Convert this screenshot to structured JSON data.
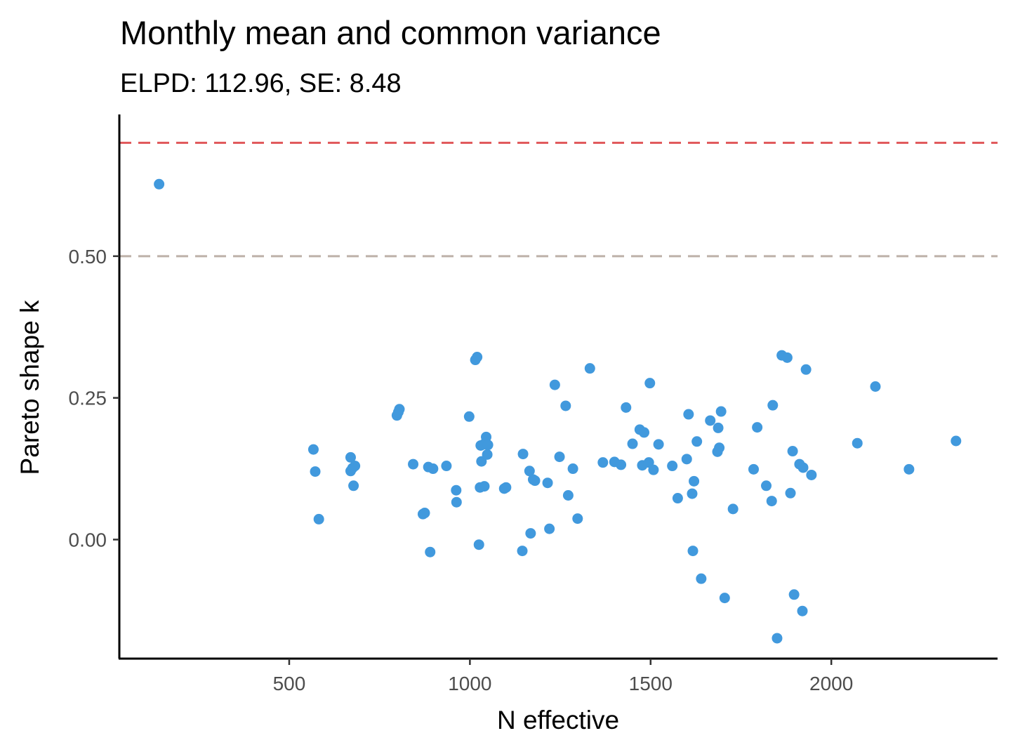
{
  "chart_data": {
    "type": "scatter",
    "title": "Monthly mean and common variance",
    "subtitle": "ELPD: 112.96, SE: 8.48",
    "xlabel": "N effective",
    "ylabel": "Pareto shape k",
    "xlim": [
      30,
      2460
    ],
    "ylim": [
      -0.21,
      0.75
    ],
    "x_ticks": [
      500,
      1000,
      1500,
      2000
    ],
    "x_tick_labels": [
      "500",
      "1000",
      "1500",
      "2000"
    ],
    "y_ticks": [
      0.0,
      0.25,
      0.5
    ],
    "y_tick_labels": [
      "0.00",
      "0.25",
      "0.50"
    ],
    "grid": false,
    "point_color": "#4199dd",
    "reference_lines": [
      {
        "y": 0.7,
        "color": "#e0575a",
        "style": "dashed"
      },
      {
        "y": 0.5,
        "color": "#bdb1a9",
        "style": "dashed"
      }
    ],
    "points": [
      {
        "x": 140,
        "y": 0.627
      },
      {
        "x": 567,
        "y": 0.159
      },
      {
        "x": 572,
        "y": 0.12
      },
      {
        "x": 582,
        "y": 0.036
      },
      {
        "x": 670,
        "y": 0.145
      },
      {
        "x": 670,
        "y": 0.121
      },
      {
        "x": 675,
        "y": 0.126
      },
      {
        "x": 682,
        "y": 0.13
      },
      {
        "x": 678,
        "y": 0.095
      },
      {
        "x": 798,
        "y": 0.219
      },
      {
        "x": 802,
        "y": 0.225
      },
      {
        "x": 805,
        "y": 0.23
      },
      {
        "x": 843,
        "y": 0.133
      },
      {
        "x": 870,
        "y": 0.045
      },
      {
        "x": 875,
        "y": 0.047
      },
      {
        "x": 885,
        "y": 0.128
      },
      {
        "x": 890,
        "y": -0.022
      },
      {
        "x": 898,
        "y": 0.125
      },
      {
        "x": 935,
        "y": 0.13
      },
      {
        "x": 962,
        "y": 0.087
      },
      {
        "x": 963,
        "y": 0.066
      },
      {
        "x": 998,
        "y": 0.217
      },
      {
        "x": 1015,
        "y": 0.317
      },
      {
        "x": 1020,
        "y": 0.322
      },
      {
        "x": 1025,
        "y": -0.009
      },
      {
        "x": 1028,
        "y": 0.092
      },
      {
        "x": 1030,
        "y": 0.166
      },
      {
        "x": 1032,
        "y": 0.138
      },
      {
        "x": 1038,
        "y": 0.168
      },
      {
        "x": 1040,
        "y": 0.094
      },
      {
        "x": 1045,
        "y": 0.181
      },
      {
        "x": 1048,
        "y": 0.15
      },
      {
        "x": 1050,
        "y": 0.167
      },
      {
        "x": 1095,
        "y": 0.09
      },
      {
        "x": 1100,
        "y": 0.092
      },
      {
        "x": 1145,
        "y": -0.02
      },
      {
        "x": 1147,
        "y": 0.151
      },
      {
        "x": 1165,
        "y": 0.121
      },
      {
        "x": 1168,
        "y": 0.011
      },
      {
        "x": 1175,
        "y": 0.106
      },
      {
        "x": 1180,
        "y": 0.104
      },
      {
        "x": 1215,
        "y": 0.1
      },
      {
        "x": 1220,
        "y": 0.019
      },
      {
        "x": 1235,
        "y": 0.273
      },
      {
        "x": 1248,
        "y": 0.146
      },
      {
        "x": 1265,
        "y": 0.236
      },
      {
        "x": 1272,
        "y": 0.078
      },
      {
        "x": 1285,
        "y": 0.125
      },
      {
        "x": 1298,
        "y": 0.037
      },
      {
        "x": 1332,
        "y": 0.302
      },
      {
        "x": 1368,
        "y": 0.136
      },
      {
        "x": 1400,
        "y": 0.137
      },
      {
        "x": 1418,
        "y": 0.132
      },
      {
        "x": 1432,
        "y": 0.233
      },
      {
        "x": 1450,
        "y": 0.169
      },
      {
        "x": 1470,
        "y": 0.194
      },
      {
        "x": 1477,
        "y": 0.131
      },
      {
        "x": 1482,
        "y": 0.189
      },
      {
        "x": 1495,
        "y": 0.136
      },
      {
        "x": 1498,
        "y": 0.276
      },
      {
        "x": 1508,
        "y": 0.123
      },
      {
        "x": 1522,
        "y": 0.168
      },
      {
        "x": 1560,
        "y": 0.13
      },
      {
        "x": 1575,
        "y": 0.073
      },
      {
        "x": 1600,
        "y": 0.142
      },
      {
        "x": 1605,
        "y": 0.221
      },
      {
        "x": 1615,
        "y": 0.081
      },
      {
        "x": 1617,
        "y": -0.02
      },
      {
        "x": 1620,
        "y": 0.103
      },
      {
        "x": 1628,
        "y": 0.173
      },
      {
        "x": 1640,
        "y": -0.069
      },
      {
        "x": 1665,
        "y": 0.21
      },
      {
        "x": 1685,
        "y": 0.155
      },
      {
        "x": 1687,
        "y": 0.197
      },
      {
        "x": 1690,
        "y": 0.162
      },
      {
        "x": 1695,
        "y": 0.226
      },
      {
        "x": 1705,
        "y": -0.103
      },
      {
        "x": 1728,
        "y": 0.054
      },
      {
        "x": 1785,
        "y": 0.124
      },
      {
        "x": 1795,
        "y": 0.198
      },
      {
        "x": 1820,
        "y": 0.095
      },
      {
        "x": 1835,
        "y": 0.068
      },
      {
        "x": 1838,
        "y": 0.237
      },
      {
        "x": 1850,
        "y": -0.174
      },
      {
        "x": 1863,
        "y": 0.325
      },
      {
        "x": 1878,
        "y": 0.321
      },
      {
        "x": 1887,
        "y": 0.082
      },
      {
        "x": 1893,
        "y": 0.156
      },
      {
        "x": 1897,
        "y": -0.097
      },
      {
        "x": 1912,
        "y": 0.133
      },
      {
        "x": 1920,
        "y": -0.126
      },
      {
        "x": 1922,
        "y": 0.127
      },
      {
        "x": 1930,
        "y": 0.3
      },
      {
        "x": 1945,
        "y": 0.114
      },
      {
        "x": 2072,
        "y": 0.17
      },
      {
        "x": 2122,
        "y": 0.27
      },
      {
        "x": 2215,
        "y": 0.124
      },
      {
        "x": 2345,
        "y": 0.174
      }
    ]
  }
}
